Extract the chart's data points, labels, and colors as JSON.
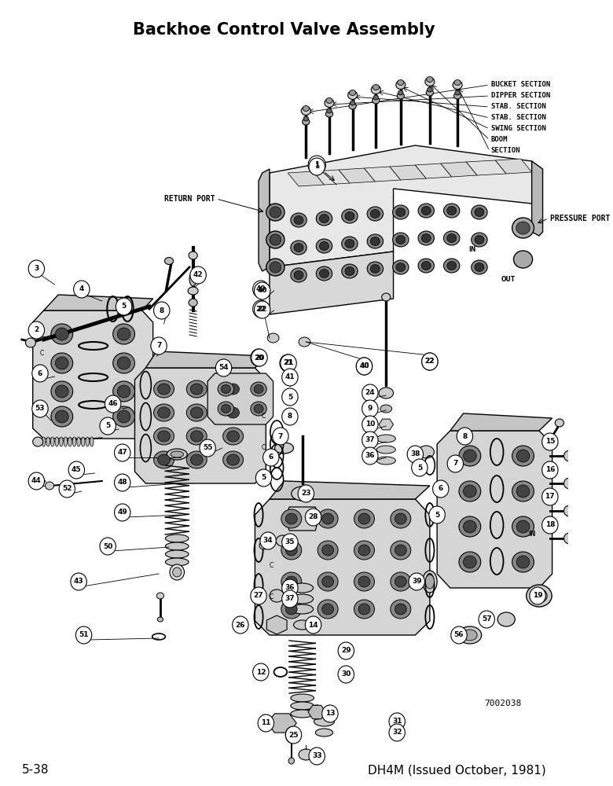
{
  "title": "Backhoe Control Valve Assembly",
  "title_fontsize": 15,
  "title_fontweight": "bold",
  "footer_left": "5-38",
  "footer_right": "DH4M (Issued October, 1981)",
  "ref_number": "7002038",
  "background_color": "#ffffff",
  "figure_width": 7.8,
  "figure_height": 10.0,
  "dpi": 100
}
